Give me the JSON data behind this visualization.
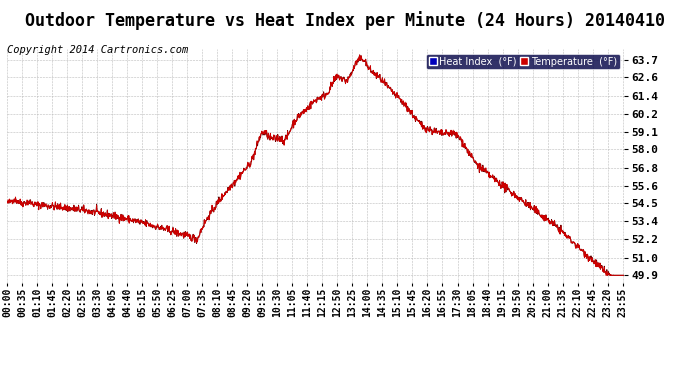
{
  "title": "Outdoor Temperature vs Heat Index per Minute (24 Hours) 20140410",
  "copyright": "Copyright 2014 Cartronics.com",
  "ylabel_right_ticks": [
    63.7,
    62.6,
    61.4,
    60.2,
    59.1,
    58.0,
    56.8,
    55.6,
    54.5,
    53.4,
    52.2,
    51.0,
    49.9
  ],
  "ylim": [
    49.4,
    64.4
  ],
  "background_color": "#ffffff",
  "grid_color": "#bbbbbb",
  "line_color_temp": "#cc0000",
  "line_color_heat": "#660000",
  "legend_heat_bg": "#0000bb",
  "legend_temp_bg": "#cc0000",
  "legend_heat_text": "Heat Index  (°F)",
  "legend_temp_text": "Temperature  (°F)",
  "title_fontsize": 12,
  "copyright_fontsize": 7.5,
  "tick_fontsize": 7,
  "ytick_fontsize": 8,
  "num_minutes": 1440
}
